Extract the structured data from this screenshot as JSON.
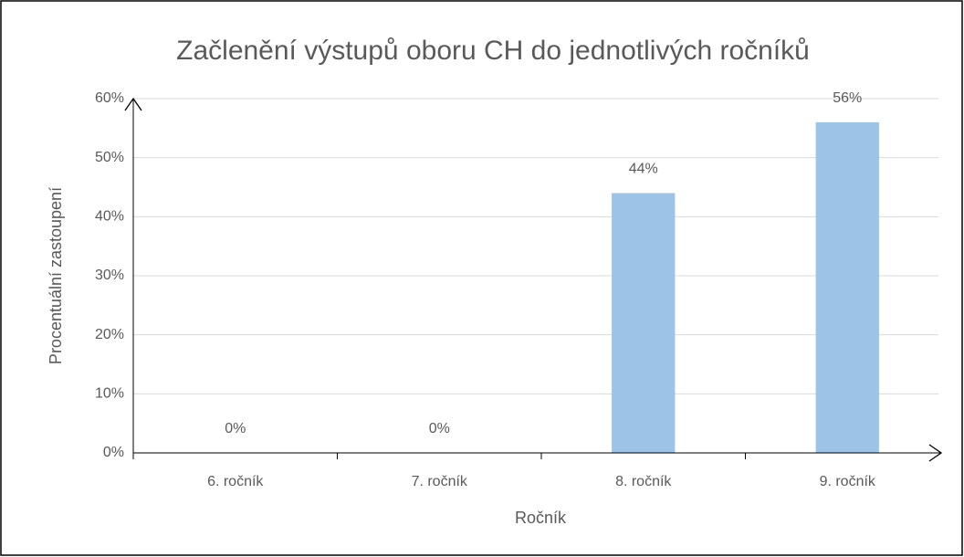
{
  "chart_data": {
    "type": "bar",
    "title": "Začlenění výstupů oboru CH do jednotlivých ročníků",
    "x_label": "Ročník",
    "y_label": "Procentuální zastoupení",
    "categories": [
      "6. ročník",
      "7. ročník",
      "8. ročník",
      "9. ročník"
    ],
    "values": [
      0,
      0,
      44,
      56
    ],
    "value_labels": [
      "0%",
      "0%",
      "44%",
      "56%"
    ],
    "color": "#9dc3e6",
    "ylim": [
      0,
      60
    ],
    "yticks": [
      {
        "value": 0,
        "label": "0%"
      },
      {
        "value": 10,
        "label": "10%"
      },
      {
        "value": 20,
        "label": "20%"
      },
      {
        "value": 30,
        "label": "30%"
      },
      {
        "value": 40,
        "label": "40%"
      },
      {
        "value": 50,
        "label": "50%"
      },
      {
        "value": 60,
        "label": "60%"
      }
    ],
    "grid": true
  }
}
